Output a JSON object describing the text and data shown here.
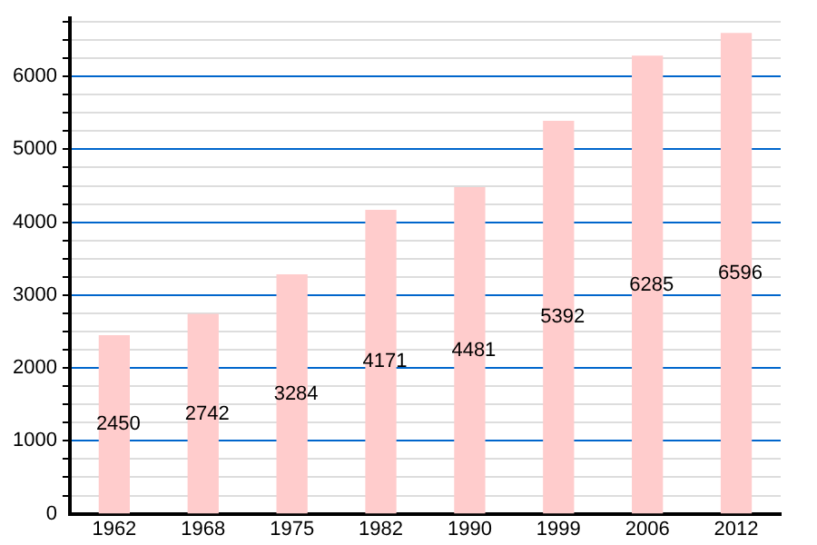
{
  "chart_data": {
    "type": "bar",
    "categories": [
      "1962",
      "1968",
      "1975",
      "1982",
      "1990",
      "1999",
      "2006",
      "2012"
    ],
    "values": [
      2450,
      2742,
      3284,
      4171,
      4481,
      5392,
      6285,
      6596
    ],
    "color": "#ffcccc",
    "ylim": [
      0,
      6800
    ],
    "yticks": [
      0,
      {
        "value": 250,
        "label": null
      },
      {
        "value": 500,
        "label": null
      },
      {
        "value": 750,
        "label": null
      },
      1000,
      {
        "value": 1250,
        "label": null
      },
      {
        "value": 1500,
        "label": null
      },
      {
        "value": 1750,
        "label": null
      },
      2000,
      {
        "value": 2250,
        "label": null
      },
      {
        "value": 2500,
        "label": null
      },
      {
        "value": 2750,
        "label": null
      },
      3000,
      {
        "value": 3250,
        "label": null
      },
      {
        "value": 3500,
        "label": null
      },
      {
        "value": 3750,
        "label": null
      },
      4000,
      {
        "value": 4250,
        "label": null
      },
      {
        "value": 4500,
        "label": null
      },
      {
        "value": 4750,
        "label": null
      },
      5000,
      {
        "value": 5250,
        "label": null
      },
      {
        "value": 5500,
        "label": null
      },
      {
        "value": 5750,
        "label": null
      },
      6000,
      {
        "value": 6250,
        "label": null
      },
      {
        "value": 6500,
        "label": null
      },
      {
        "value": 6750,
        "label": null
      }
    ],
    "grid": "y",
    "data_labels": true
  }
}
